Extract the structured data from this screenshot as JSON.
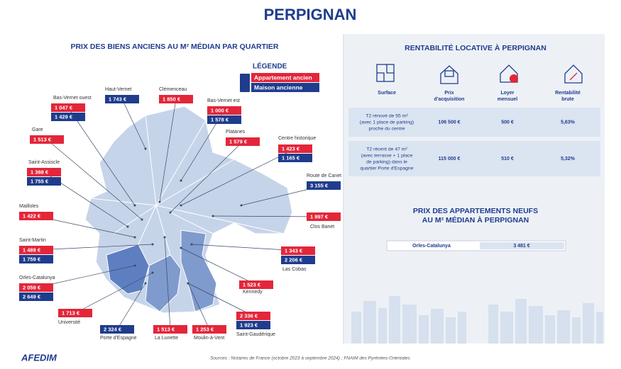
{
  "header": {
    "title": "PERPIGNAN"
  },
  "map": {
    "title": "PRIX DES BIENS ANCIENS AU M² MÉDIAN PAR QUARTIER",
    "legend": {
      "title": "LÉGENDE",
      "items": [
        {
          "label": "Appartement ancien",
          "color": "#e3263a"
        },
        {
          "label": "Maison ancienne",
          "color": "#1f3c8d"
        }
      ]
    },
    "districts": [
      {
        "name": "Bas-Vernet ouest",
        "prices": [
          "1 047 €",
          "1 429 €"
        ]
      },
      {
        "name": "Haut-Vernet",
        "prices": [
          null,
          "1 743 €"
        ]
      },
      {
        "name": "Clémenceau",
        "prices": [
          "1 850 €",
          null
        ]
      },
      {
        "name": "Bas-Vernet est",
        "prices": [
          "1 000 €",
          "1 578 €"
        ]
      },
      {
        "name": "Gare",
        "prices": [
          "1 513 €",
          null
        ]
      },
      {
        "name": "Platanes",
        "prices": [
          "1 579 €",
          null
        ]
      },
      {
        "name": "Centre historique",
        "prices": [
          "1 423 €",
          "1 165 €"
        ]
      },
      {
        "name": "Saint-Assiscle",
        "prices": [
          "1 388 €",
          "1 755 €"
        ]
      },
      {
        "name": "Route de Canet",
        "prices": [
          null,
          "3 155 €"
        ]
      },
      {
        "name": "Mailloles",
        "prices": [
          "1 422 €",
          null
        ]
      },
      {
        "name": "Clos Banet",
        "prices": [
          "1 897 €",
          null
        ]
      },
      {
        "name": "Saint-Martin",
        "prices": [
          "1 489 €",
          "1 759 €"
        ]
      },
      {
        "name": "Las Cobas",
        "prices": [
          "1 343 €",
          "2 206 €"
        ]
      },
      {
        "name": "Orles-Catalunya",
        "prices": [
          "2 059 €",
          "2 649 €"
        ]
      },
      {
        "name": "Kennedy",
        "prices": [
          "1 523 €",
          null
        ]
      },
      {
        "name": "Université",
        "prices": [
          "1 713 €",
          null
        ]
      },
      {
        "name": "Saint-Gaudérique",
        "prices": [
          "2 336 €",
          "1 923 €"
        ]
      },
      {
        "name": "Porte d'Espagne",
        "prices": [
          null,
          "2 324 €"
        ]
      },
      {
        "name": "La Lunette",
        "prices": [
          "1 513 €",
          null
        ]
      },
      {
        "name": "Moulin-à-Vent",
        "prices": [
          "1 253 €",
          null
        ]
      }
    ]
  },
  "rentabilite": {
    "title": "RENTABILITÉ LOCATIVE À PERPIGNAN",
    "columns": [
      [
        "Surface"
      ],
      [
        "Prix",
        "d'acquisition"
      ],
      [
        "Loyer",
        "mensuel"
      ],
      [
        "Rentabilité",
        "brute"
      ]
    ],
    "rows": [
      {
        "surface": [
          "T2 rénové de 55 m²",
          "(avec 1 place de parking)",
          "proche du centre"
        ],
        "prix": "106 500 €",
        "loyer": "500 €",
        "rentabilite": "5,63%"
      },
      {
        "surface": [
          "T2 récent de 47 m²",
          "(avec terrasse + 1 place",
          "de parking) dans le",
          "quartier Porte d'Espagne"
        ],
        "prix": "115 000 €",
        "loyer": "510 €",
        "rentabilite": "5,32%"
      }
    ]
  },
  "neufs": {
    "title": [
      "PRIX DES APPARTEMENTS NEUFS",
      "AU M² MÉDIAN À PERPIGNAN"
    ],
    "rows": [
      {
        "quartier": "Orles-Catalunya",
        "prix": "3 481 €"
      }
    ]
  },
  "footer": {
    "sources": "Sources : Notaires de France (octobre 2023 à septembre 2024) ; FNAIM des Pyrénées-Orientales",
    "logo": "AFEDIM"
  }
}
